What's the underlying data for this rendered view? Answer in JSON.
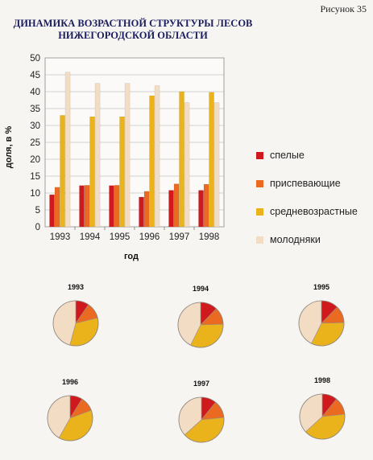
{
  "figure_label": "Рисунок 35",
  "chart_data": [
    {
      "type": "bar",
      "title": "ДИНАМИКА ВОЗРАСТНОЙ СТРУКТУРЫ ЛЕСОВ НИЖЕГОРОДСКОЙ ОБЛАСТИ",
      "title_lines": [
        "ДИНАМИКА ВОЗРАСТНОЙ СТРУКТУРЫ ЛЕСОВ",
        "НИЖЕГОРОДСКОЙ ОБЛАСТИ"
      ],
      "categories": [
        "1993",
        "1994",
        "1995",
        "1996",
        "1997",
        "1998"
      ],
      "xlabel": "год",
      "ylabel": "доля, в %",
      "ylim": [
        0,
        50
      ],
      "yticks": [
        0,
        5,
        10,
        15,
        20,
        25,
        30,
        35,
        40,
        45,
        50
      ],
      "grid": true,
      "legend_position": "right",
      "series": [
        {
          "name": "спелые",
          "color": "#d0191c",
          "values": [
            9.5,
            12.2,
            12.2,
            8.8,
            10.8,
            10.8
          ]
        },
        {
          "name": "приспевающие",
          "color": "#ea6a22",
          "values": [
            11.7,
            12.3,
            12.3,
            10.5,
            12.7,
            12.6
          ]
        },
        {
          "name": "средневозрастные",
          "color": "#eab31b",
          "values": [
            33.0,
            32.6,
            32.6,
            38.8,
            40.0,
            39.8
          ]
        },
        {
          "name": "молодняки",
          "color": "#f2dcc4",
          "values": [
            45.8,
            42.5,
            42.5,
            41.8,
            36.8,
            36.8
          ]
        }
      ]
    },
    {
      "type": "pie",
      "title": "1993",
      "categories": [
        "спелые",
        "приспевающие",
        "средневозрастные",
        "молодняки"
      ],
      "values": [
        9.5,
        11.7,
        33.0,
        45.8
      ]
    },
    {
      "type": "pie",
      "title": "1994",
      "categories": [
        "спелые",
        "приспевающие",
        "средневозрастные",
        "молодняки"
      ],
      "values": [
        12.2,
        12.3,
        32.6,
        42.5
      ]
    },
    {
      "type": "pie",
      "title": "1995",
      "categories": [
        "спелые",
        "приспевающие",
        "средневозрастные",
        "молодняки"
      ],
      "values": [
        12.2,
        12.3,
        32.6,
        42.5
      ]
    },
    {
      "type": "pie",
      "title": "1996",
      "categories": [
        "спелые",
        "приспевающие",
        "средневозрастные",
        "молодняки"
      ],
      "values": [
        8.8,
        10.5,
        38.8,
        41.8
      ]
    },
    {
      "type": "pie",
      "title": "1997",
      "categories": [
        "спелые",
        "приспевающие",
        "средневозрастные",
        "молодняки"
      ],
      "values": [
        10.8,
        12.7,
        40.0,
        36.8
      ]
    },
    {
      "type": "pie",
      "title": "1998",
      "categories": [
        "спелые",
        "приспевающие",
        "средневозрастные",
        "молодняки"
      ],
      "values": [
        10.8,
        12.6,
        39.8,
        36.8
      ]
    }
  ]
}
